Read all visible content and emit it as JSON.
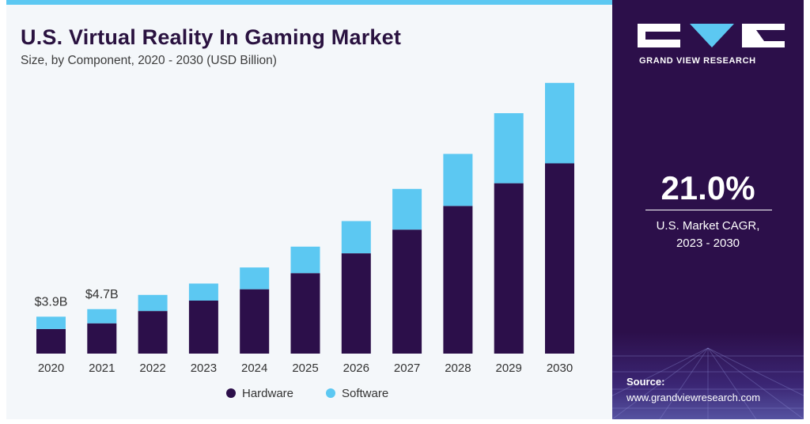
{
  "header": {
    "title": "U.S. Virtual Reality In Gaming Market",
    "subtitle": "Size, by Component, 2020 - 2030 (USD Billion)"
  },
  "sidebar": {
    "brand": "GRAND VIEW RESEARCH",
    "cagr_value": "21.0%",
    "cagr_label_line1": "U.S. Market CAGR,",
    "cagr_label_line2": "2023 - 2030",
    "source_label": "Source:",
    "source_url": "www.grandviewresearch.com"
  },
  "colors": {
    "hardware": "#2c0f4a",
    "software": "#5cc8f2",
    "accent": "#5cc8f2",
    "panel": "#2c0f4a"
  },
  "chart_data": {
    "type": "bar",
    "stacked": true,
    "title": "U.S. Virtual Reality In Gaming Market",
    "subtitle": "Size, by Component, 2020 - 2030 (USD Billion)",
    "categories": [
      "2020",
      "2021",
      "2022",
      "2023",
      "2024",
      "2025",
      "2026",
      "2027",
      "2028",
      "2029",
      "2030"
    ],
    "series": [
      {
        "name": "Hardware",
        "values": [
          2.6,
          3.2,
          4.5,
          5.6,
          6.8,
          8.5,
          10.6,
          13.1,
          15.6,
          18.0,
          20.1
        ]
      },
      {
        "name": "Software",
        "values": [
          1.3,
          1.5,
          1.7,
          1.8,
          2.3,
          2.8,
          3.4,
          4.3,
          5.5,
          7.4,
          8.5
        ]
      }
    ],
    "annotations": [
      {
        "category": "2020",
        "label": "$3.9B"
      },
      {
        "category": "2021",
        "label": "$4.7B"
      }
    ],
    "ylim": [
      0,
      29
    ],
    "grid": false,
    "legend": "bottom"
  }
}
